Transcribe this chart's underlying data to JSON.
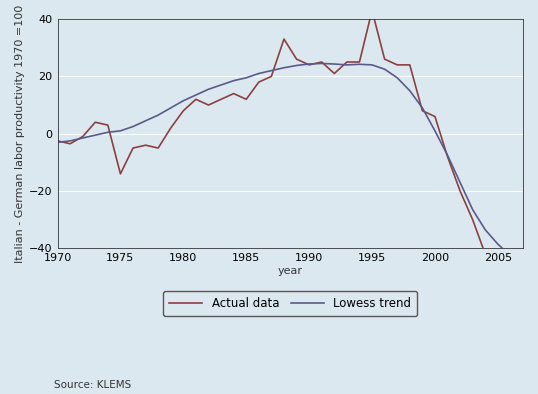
{
  "actual_years": [
    1970,
    1971,
    1972,
    1973,
    1974,
    1975,
    1976,
    1977,
    1978,
    1979,
    1980,
    1981,
    1982,
    1983,
    1984,
    1985,
    1986,
    1987,
    1988,
    1989,
    1990,
    1991,
    1992,
    1993,
    1994,
    1995,
    1996,
    1997,
    1998,
    1999,
    2000,
    2001,
    2002,
    2003,
    2004,
    2005,
    2006,
    2007
  ],
  "actual_values": [
    -2.5,
    -3.5,
    -1.0,
    4.0,
    3.0,
    -14.0,
    -5.0,
    -4.0,
    -5.0,
    2.0,
    8.0,
    12.0,
    10.0,
    12.0,
    14.0,
    12.0,
    18.0,
    20.0,
    33.0,
    26.0,
    24.0,
    25.0,
    21.0,
    25.0,
    25.0,
    43.0,
    26.0,
    24.0,
    24.0,
    8.0,
    6.0,
    -8.0,
    -20.0,
    -30.0,
    -42.0,
    -43.0,
    -43.0,
    -43.0
  ],
  "lowess_years": [
    1970,
    1971,
    1972,
    1973,
    1974,
    1975,
    1976,
    1977,
    1978,
    1979,
    1980,
    1981,
    1982,
    1983,
    1984,
    1985,
    1986,
    1987,
    1988,
    1989,
    1990,
    1991,
    1992,
    1993,
    1994,
    1995,
    1996,
    1997,
    1998,
    1999,
    2000,
    2001,
    2002,
    2003,
    2004,
    2005,
    2006,
    2007
  ],
  "lowess_values": [
    -3.0,
    -2.5,
    -1.5,
    -0.5,
    0.5,
    1.0,
    2.5,
    4.5,
    6.5,
    9.0,
    11.5,
    13.5,
    15.5,
    17.0,
    18.5,
    19.5,
    21.0,
    22.0,
    23.0,
    23.8,
    24.3,
    24.5,
    24.3,
    24.0,
    24.2,
    24.0,
    22.5,
    19.5,
    15.0,
    9.0,
    1.0,
    -7.5,
    -17.0,
    -26.5,
    -33.5,
    -38.5,
    -42.5,
    -43.0
  ],
  "actual_color": "#5a5a8a",
  "lowess_color": "#8b4040",
  "ylabel": "Italian - German labor productivity 1970 =100",
  "xlabel": "year",
  "ylim": [
    -40,
    40
  ],
  "xlim": [
    1970,
    2007
  ],
  "yticks": [
    -40,
    -20,
    0,
    20,
    40
  ],
  "xticks": [
    1970,
    1975,
    1980,
    1985,
    1990,
    1995,
    2000,
    2005
  ],
  "legend_labels": [
    "Actual data",
    "Lowess trend"
  ],
  "source_text": "Source: KLEMS",
  "background_color": "#dce8f0",
  "plot_bg_color": "#dce8f0",
  "axis_label_fontsize": 8,
  "tick_fontsize": 8,
  "legend_fontsize": 8.5,
  "source_fontsize": 7.5,
  "linewidth": 1.2
}
